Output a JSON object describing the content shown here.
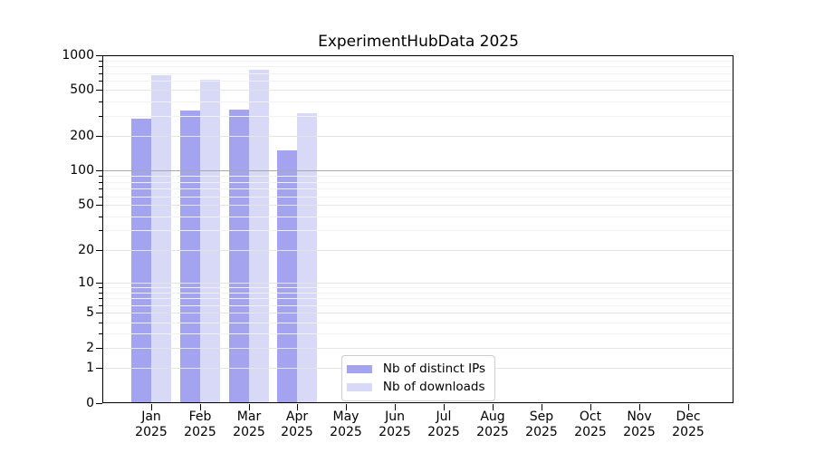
{
  "chart_data": {
    "type": "bar",
    "title": "ExperimentHubData 2025",
    "categories": [
      "Jan 2025",
      "Feb 2025",
      "Mar 2025",
      "Apr 2025",
      "May 2025",
      "Jun 2025",
      "Jul 2025",
      "Aug 2025",
      "Sep 2025",
      "Oct 2025",
      "Nov 2025",
      "Dec 2025"
    ],
    "series": [
      {
        "name": "Nb of distinct IPs",
        "color": "#a3a3f0",
        "values": [
          282,
          331,
          338,
          150,
          0,
          0,
          0,
          0,
          0,
          0,
          0,
          0
        ]
      },
      {
        "name": "Nb of downloads",
        "color": "#d8d8f7",
        "values": [
          677,
          619,
          754,
          313,
          0,
          0,
          0,
          0,
          0,
          0,
          0,
          0
        ]
      }
    ],
    "xlabel": "",
    "ylabel": "",
    "y_axis": {
      "scale": "log10(value+1)",
      "min": 0,
      "max": 1000,
      "ticks": [
        0,
        1,
        2,
        5,
        10,
        20,
        50,
        100,
        200,
        500,
        1000
      ],
      "minor_ticks": [
        3,
        4,
        6,
        7,
        8,
        9,
        30,
        40,
        60,
        70,
        80,
        90,
        300,
        400,
        600,
        700,
        800,
        900
      ],
      "emphasized_gridline": 100
    },
    "grid": "horizontal",
    "legend_position": "lower center",
    "colors": {
      "grid_major": "#e4e4e4",
      "grid_minor": "#f1f1f1",
      "grid_emphasized": "#a9a9a9",
      "spine": "#000000",
      "background": "#ffffff"
    }
  }
}
